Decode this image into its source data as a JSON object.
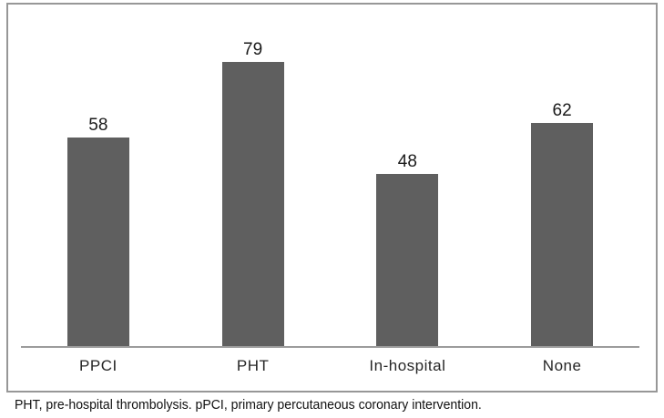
{
  "chart_data": {
    "type": "bar",
    "categories": [
      "PPCI",
      "PHT",
      "In-hospital",
      "None"
    ],
    "values": [
      58,
      79,
      48,
      62
    ],
    "title": "",
    "xlabel": "",
    "ylabel": "",
    "ylim": [
      0,
      95
    ],
    "grid": false,
    "legend": false,
    "data_labels_shown": true,
    "bar_color": "#5f5f5f",
    "axis_color": "#9c9c9c",
    "frame_color": "#979797",
    "label_color": "#262626"
  },
  "caption": "PHT, pre-hospital thrombolysis. pPCI, primary percutaneous coronary intervention."
}
